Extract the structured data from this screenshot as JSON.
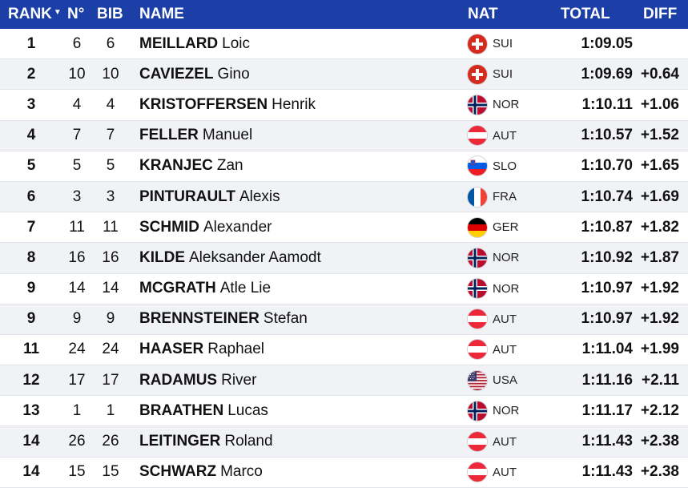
{
  "header": {
    "rank": "RANK",
    "no": "N°",
    "bib": "BIB",
    "name": "NAME",
    "nat": "NAT",
    "total": "TOTAL",
    "diff": "DIFF"
  },
  "rows": [
    {
      "rank": "1",
      "no": "6",
      "bib": "6",
      "last": "MEILLARD",
      "first": "Loic",
      "nat": "SUI",
      "flag": "sui-flag-icon",
      "total": "1:09.05",
      "diff": ""
    },
    {
      "rank": "2",
      "no": "10",
      "bib": "10",
      "last": "CAVIEZEL",
      "first": "Gino",
      "nat": "SUI",
      "flag": "sui-flag-icon",
      "total": "1:09.69",
      "diff": "+0.64"
    },
    {
      "rank": "3",
      "no": "4",
      "bib": "4",
      "last": "KRISTOFFERSEN",
      "first": "Henrik",
      "nat": "NOR",
      "flag": "nor-flag-icon",
      "total": "1:10.11",
      "diff": "+1.06"
    },
    {
      "rank": "4",
      "no": "7",
      "bib": "7",
      "last": "FELLER",
      "first": "Manuel",
      "nat": "AUT",
      "flag": "aut-flag-icon",
      "total": "1:10.57",
      "diff": "+1.52"
    },
    {
      "rank": "5",
      "no": "5",
      "bib": "5",
      "last": "KRANJEC",
      "first": "Zan",
      "nat": "SLO",
      "flag": "slo-flag-icon",
      "total": "1:10.70",
      "diff": "+1.65"
    },
    {
      "rank": "6",
      "no": "3",
      "bib": "3",
      "last": "PINTURAULT",
      "first": "Alexis",
      "nat": "FRA",
      "flag": "fra-flag-icon",
      "total": "1:10.74",
      "diff": "+1.69"
    },
    {
      "rank": "7",
      "no": "11",
      "bib": "11",
      "last": "SCHMID",
      "first": "Alexander",
      "nat": "GER",
      "flag": "ger-flag-icon",
      "total": "1:10.87",
      "diff": "+1.82"
    },
    {
      "rank": "8",
      "no": "16",
      "bib": "16",
      "last": "KILDE",
      "first": "Aleksander Aamodt",
      "nat": "NOR",
      "flag": "nor-flag-icon",
      "total": "1:10.92",
      "diff": "+1.87"
    },
    {
      "rank": "9",
      "no": "14",
      "bib": "14",
      "last": "MCGRATH",
      "first": "Atle Lie",
      "nat": "NOR",
      "flag": "nor-flag-icon",
      "total": "1:10.97",
      "diff": "+1.92"
    },
    {
      "rank": "9",
      "no": "9",
      "bib": "9",
      "last": "BRENNSTEINER",
      "first": "Stefan",
      "nat": "AUT",
      "flag": "aut-flag-icon",
      "total": "1:10.97",
      "diff": "+1.92"
    },
    {
      "rank": "11",
      "no": "24",
      "bib": "24",
      "last": "HAASER",
      "first": "Raphael",
      "nat": "AUT",
      "flag": "aut-flag-icon",
      "total": "1:11.04",
      "diff": "+1.99"
    },
    {
      "rank": "12",
      "no": "17",
      "bib": "17",
      "last": "RADAMUS",
      "first": "River",
      "nat": "USA",
      "flag": "usa-flag-icon",
      "total": "1:11.16",
      "diff": "+2.11"
    },
    {
      "rank": "13",
      "no": "1",
      "bib": "1",
      "last": "BRAATHEN",
      "first": "Lucas",
      "nat": "NOR",
      "flag": "nor-flag-icon",
      "total": "1:11.17",
      "diff": "+2.12"
    },
    {
      "rank": "14",
      "no": "26",
      "bib": "26",
      "last": "LEITINGER",
      "first": "Roland",
      "nat": "AUT",
      "flag": "aut-flag-icon",
      "total": "1:11.43",
      "diff": "+2.38"
    },
    {
      "rank": "14",
      "no": "15",
      "bib": "15",
      "last": "SCHWARZ",
      "first": "Marco",
      "nat": "AUT",
      "flag": "aut-flag-icon",
      "total": "1:11.43",
      "diff": "+2.38"
    }
  ],
  "colors": {
    "header_bg": "#1c3fa7",
    "alt_row_bg": "#f0f2f6"
  }
}
